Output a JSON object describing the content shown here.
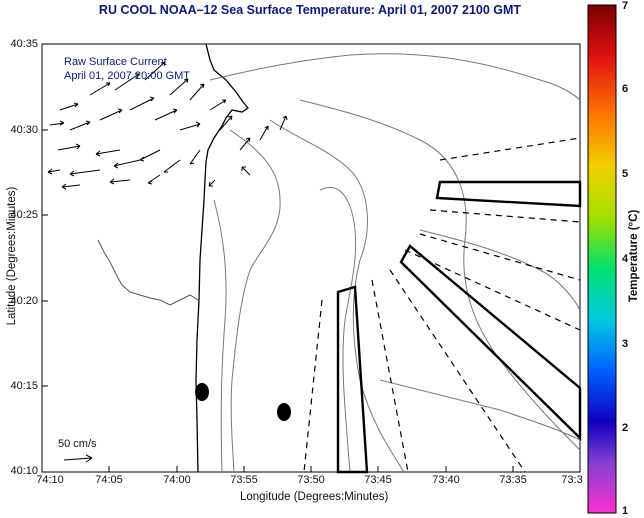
{
  "title": "RU COOL  NOAA–12  Sea Surface Temperature:  April 01, 2007 2100 GMT",
  "inset": {
    "line1": "Raw Surface Current",
    "line2": "April 01, 2007 20:00 GMT"
  },
  "axes": {
    "xlabel": "Longitude (Degrees:Minutes)",
    "ylabel": "Latitude (Degrees:Minutes)",
    "xticks": [
      "74:10",
      "74:05",
      "74:00",
      "73:55",
      "73:50",
      "73:45",
      "73:40",
      "73:35",
      "73:3"
    ],
    "yticks": [
      "40:35",
      "40:30",
      "40:25",
      "40:20",
      "40:15",
      "40:10"
    ]
  },
  "scale_arrow_label": "50 cm/s",
  "colorbar": {
    "label": "Temperature (°C)",
    "ticks": [
      "7",
      "6",
      "5",
      "4",
      "3",
      "2",
      "1"
    ]
  }
}
